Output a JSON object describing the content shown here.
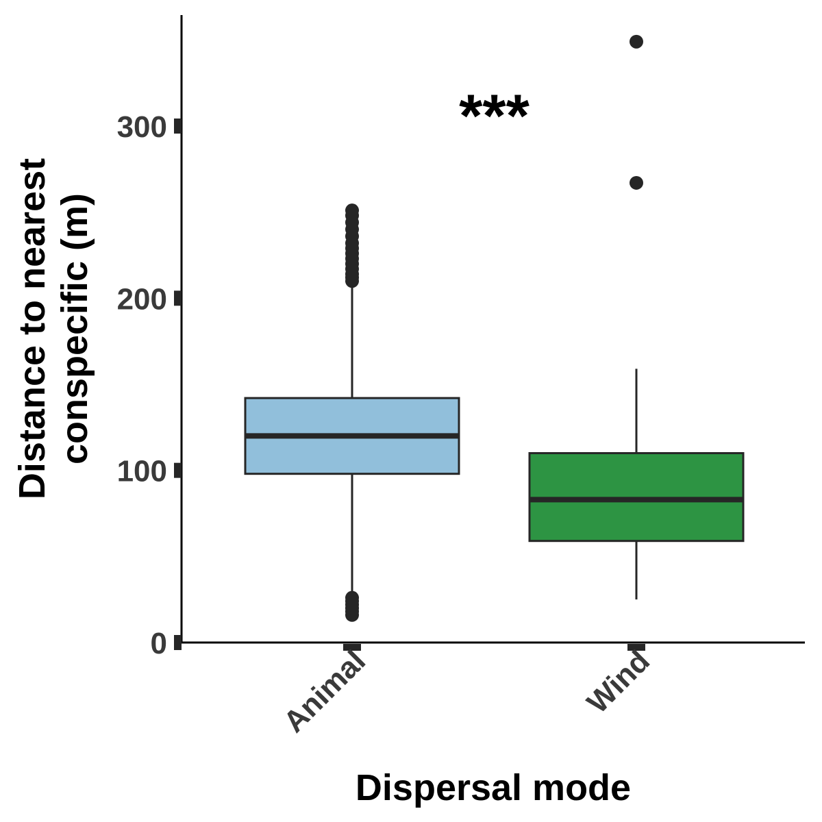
{
  "chart_data": {
    "type": "boxplot",
    "xlabel": "Dispersal mode",
    "ylabel_lines": [
      "Distance to nearest",
      "conspecific (m)"
    ],
    "ylim": [
      0,
      365
    ],
    "yticks": [
      0,
      100,
      200,
      300
    ],
    "grid": false,
    "legend": "none",
    "annotation": {
      "text": "***",
      "x_between": [
        "Animal",
        "Wind"
      ],
      "y": 310
    },
    "categories": [
      "Animal",
      "Wind"
    ],
    "series": [
      {
        "category": "Animal",
        "color": "#91bfdb",
        "q1": 98,
        "median": 120,
        "q3": 142,
        "whisker_low": 17,
        "whisker_high": 210,
        "outliers": [
          16,
          18,
          20,
          22,
          24,
          26,
          210,
          212,
          214,
          217,
          220,
          223,
          226,
          229,
          232,
          236,
          240,
          244,
          248,
          251
        ]
      },
      {
        "category": "Wind",
        "color": "#2d9443",
        "q1": 59,
        "median": 83,
        "q3": 110,
        "whisker_low": 25,
        "whisker_high": 159,
        "outliers": [
          267,
          349
        ]
      }
    ]
  }
}
